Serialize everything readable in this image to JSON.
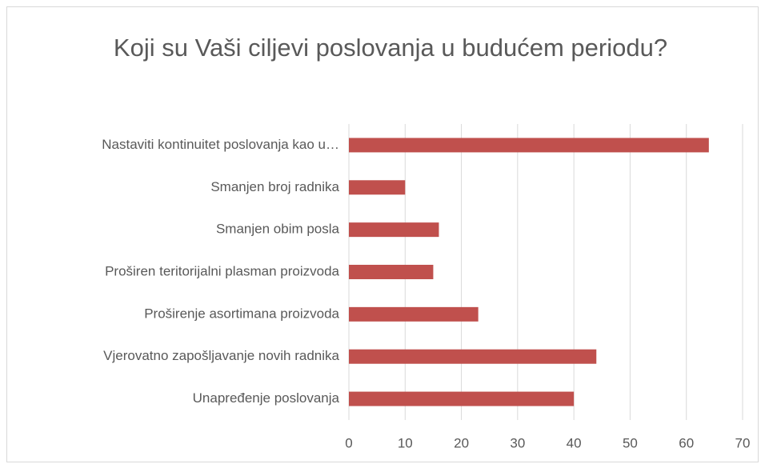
{
  "chart_data": {
    "type": "bar",
    "orientation": "horizontal",
    "title": "Koji su Vaši ciljevi poslovanja u budućem periodu?",
    "categories": [
      "Nastaviti kontinuitet poslovanja kao u…",
      "Smanjen broj radnika",
      "Smanjen obim posla",
      "Proširen teritorijalni plasman proizvoda",
      "Proširenje asortimana proizvoda",
      "Vjerovatno zapošljavanje novih radnika",
      "Unapređenje poslovanja"
    ],
    "values": [
      64,
      10,
      16,
      15,
      23,
      44,
      40
    ],
    "color": "#c0504d",
    "xlim": [
      0,
      70
    ],
    "xticks": [
      0,
      10,
      20,
      30,
      40,
      50,
      60,
      70
    ],
    "grid": true
  }
}
